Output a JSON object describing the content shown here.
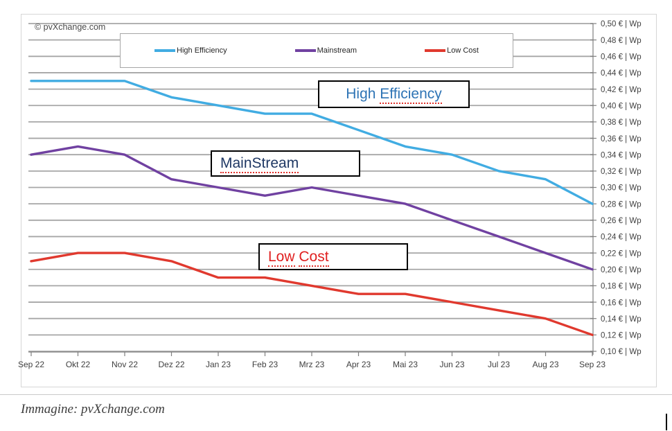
{
  "watermark": "© pvXchange.com",
  "legend": [
    {
      "label": "High Efficiency",
      "color": "#41ACE2"
    },
    {
      "label": "Mainstream",
      "color": "#7041A1"
    },
    {
      "label": "Low Cost",
      "color": "#E0392E"
    }
  ],
  "annotations": [
    {
      "plain": "High ",
      "underlined": "Efficiency",
      "color": "#2E74B5"
    },
    {
      "plain": "",
      "underlined": "MainStream",
      "color": "#1F3864"
    },
    {
      "plain": "",
      "underlined": "Low Cost",
      "color": "#E02020"
    }
  ],
  "caption": "Immagine: pvXchange.com",
  "chart_data": {
    "type": "line",
    "categories": [
      "Sep 22",
      "Okt 22",
      "Nov 22",
      "Dez 22",
      "Jan 23",
      "Feb 23",
      "Mrz 23",
      "Apr 23",
      "Mai 23",
      "Jun 23",
      "Jul 23",
      "Aug 23",
      "Sep 23"
    ],
    "series": [
      {
        "name": "High Efficiency",
        "color": "#41ACE2",
        "values": [
          0.43,
          0.43,
          0.43,
          0.41,
          0.4,
          0.39,
          0.39,
          0.37,
          0.35,
          0.34,
          0.32,
          0.31,
          0.28
        ]
      },
      {
        "name": "Mainstream",
        "color": "#7041A1",
        "values": [
          0.34,
          0.35,
          0.34,
          0.31,
          0.3,
          0.29,
          0.3,
          0.29,
          0.28,
          0.26,
          0.24,
          0.22,
          0.2
        ]
      },
      {
        "name": "Low Cost",
        "color": "#E0392E",
        "values": [
          0.21,
          0.22,
          0.22,
          0.21,
          0.19,
          0.19,
          0.18,
          0.17,
          0.17,
          0.16,
          0.15,
          0.14,
          0.12
        ]
      }
    ],
    "y_ticks": [
      "0,50 € | Wp",
      "0,48 € | Wp",
      "0,46 € | Wp",
      "0,44 € | Wp",
      "0,42 € | Wp",
      "0,40 € | Wp",
      "0,38 € | Wp",
      "0,36 € | Wp",
      "0,34 € | Wp",
      "0,32 € | Wp",
      "0,30 € | Wp",
      "0,28 € | Wp",
      "0,26 € | Wp",
      "0,24 € | Wp",
      "0,22 € | Wp",
      "0,20 € | Wp",
      "0,18 € | Wp",
      "0,16 € | Wp",
      "0,14 € | Wp",
      "0,12 € | Wp",
      "0,10 € | Wp"
    ],
    "ylim": [
      0.1,
      0.5
    ],
    "y_step": 0.02,
    "unit": "€ | Wp",
    "grid": true,
    "legend_position": "top-center",
    "y_axis_side": "right"
  }
}
